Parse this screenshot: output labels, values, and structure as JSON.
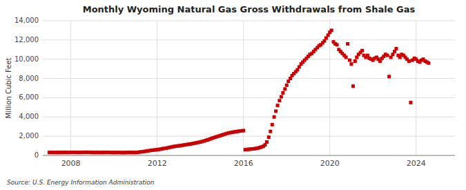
{
  "chart_data": {
    "type": "scatter",
    "title": "Monthly Wyoming Natural Gas Gross Withdrawals from Shale Gas",
    "ylabel": "Million Cubic Feet",
    "annotations": [
      "Source: U.S. Energy Information Administration"
    ],
    "color": "#CC0000",
    "marker": "square",
    "grid": true,
    "xlim": [
      2006.7,
      2025.8
    ],
    "xticks": [
      2008,
      2012,
      2016,
      2020,
      2024
    ],
    "ylim": [
      0,
      14000
    ],
    "yticks": [
      0,
      {
        "value": 2000,
        "label": "2,000"
      },
      {
        "value": 4000,
        "label": "4,000"
      },
      {
        "value": 6000,
        "label": "6,000"
      },
      {
        "value": 8000,
        "label": "8,000"
      },
      {
        "value": 10000,
        "label": "10,000"
      },
      {
        "value": 12000,
        "label": "12,000"
      },
      {
        "value": 14000,
        "label": "14,000"
      }
    ],
    "x": [
      2007.0,
      2007.08,
      2007.17,
      2007.25,
      2007.33,
      2007.42,
      2007.5,
      2007.58,
      2007.67,
      2007.75,
      2007.83,
      2007.92,
      2008.0,
      2008.08,
      2008.17,
      2008.25,
      2008.33,
      2008.42,
      2008.5,
      2008.58,
      2008.67,
      2008.75,
      2008.83,
      2008.92,
      2009.0,
      2009.08,
      2009.17,
      2009.25,
      2009.33,
      2009.42,
      2009.5,
      2009.58,
      2009.67,
      2009.75,
      2009.83,
      2009.92,
      2010.0,
      2010.08,
      2010.17,
      2010.25,
      2010.33,
      2010.42,
      2010.5,
      2010.58,
      2010.67,
      2010.75,
      2010.83,
      2010.92,
      2011.0,
      2011.08,
      2011.17,
      2011.25,
      2011.33,
      2011.42,
      2011.5,
      2011.58,
      2011.67,
      2011.75,
      2011.83,
      2011.92,
      2012.0,
      2012.08,
      2012.17,
      2012.25,
      2012.33,
      2012.42,
      2012.5,
      2012.58,
      2012.67,
      2012.75,
      2012.83,
      2012.92,
      2013.0,
      2013.08,
      2013.17,
      2013.25,
      2013.33,
      2013.42,
      2013.5,
      2013.58,
      2013.67,
      2013.75,
      2013.83,
      2013.92,
      2014.0,
      2014.08,
      2014.17,
      2014.25,
      2014.33,
      2014.42,
      2014.5,
      2014.58,
      2014.67,
      2014.75,
      2014.83,
      2014.92,
      2015.0,
      2015.08,
      2015.17,
      2015.25,
      2015.33,
      2015.42,
      2015.5,
      2015.58,
      2015.67,
      2015.75,
      2015.83,
      2015.92,
      2016.0,
      2016.08,
      2016.17,
      2016.25,
      2016.33,
      2016.42,
      2016.5,
      2016.58,
      2016.67,
      2016.75,
      2016.83,
      2016.92,
      2017.0,
      2017.08,
      2017.17,
      2017.25,
      2017.33,
      2017.42,
      2017.5,
      2017.58,
      2017.67,
      2017.75,
      2017.83,
      2017.92,
      2018.0,
      2018.08,
      2018.17,
      2018.25,
      2018.33,
      2018.42,
      2018.5,
      2018.58,
      2018.67,
      2018.75,
      2018.83,
      2018.92,
      2019.0,
      2019.08,
      2019.17,
      2019.25,
      2019.33,
      2019.42,
      2019.5,
      2019.58,
      2019.67,
      2019.75,
      2019.83,
      2019.92,
      2020.0,
      2020.08,
      2020.17,
      2020.25,
      2020.33,
      2020.42,
      2020.5,
      2020.58,
      2020.67,
      2020.75,
      2020.83,
      2020.92,
      2021.0,
      2021.08,
      2021.17,
      2021.25,
      2021.33,
      2021.42,
      2021.5,
      2021.58,
      2021.67,
      2021.75,
      2021.83,
      2021.92,
      2022.0,
      2022.08,
      2022.17,
      2022.25,
      2022.33,
      2022.42,
      2022.5,
      2022.58,
      2022.67,
      2022.75,
      2022.83,
      2022.92,
      2023.0,
      2023.08,
      2023.17,
      2023.25,
      2023.33,
      2023.42,
      2023.5,
      2023.58,
      2023.67,
      2023.75,
      2023.83,
      2023.92,
      2024.0,
      2024.08,
      2024.17,
      2024.25,
      2024.33,
      2024.42,
      2024.5,
      2024.58
    ],
    "values": [
      310,
      320,
      315,
      310,
      305,
      310,
      315,
      310,
      320,
      315,
      310,
      315,
      320,
      330,
      325,
      320,
      315,
      310,
      320,
      325,
      330,
      335,
      330,
      325,
      310,
      305,
      310,
      315,
      310,
      305,
      310,
      315,
      320,
      315,
      310,
      305,
      300,
      305,
      310,
      305,
      300,
      295,
      300,
      305,
      310,
      315,
      310,
      305,
      310,
      320,
      350,
      370,
      390,
      420,
      450,
      480,
      510,
      540,
      560,
      580,
      600,
      630,
      660,
      700,
      730,
      760,
      800,
      840,
      880,
      920,
      950,
      980,
      1000,
      1030,
      1060,
      1090,
      1120,
      1150,
      1180,
      1210,
      1250,
      1280,
      1320,
      1360,
      1400,
      1450,
      1500,
      1560,
      1620,
      1680,
      1750,
      1820,
      1880,
      1940,
      2000,
      2060,
      2120,
      2180,
      2240,
      2300,
      2350,
      2380,
      2420,
      2450,
      2480,
      2510,
      2540,
      2560,
      2580,
      600,
      620,
      640,
      660,
      680,
      700,
      730,
      770,
      820,
      880,
      960,
      1100,
      1400,
      1900,
      2500,
      3200,
      4000,
      4600,
      5200,
      5700,
      6100,
      6500,
      6900,
      7300,
      7700,
      8000,
      8300,
      8500,
      8700,
      8900,
      9200,
      9500,
      9700,
      9900,
      10100,
      10300,
      10500,
      10600,
      10800,
      11000,
      11200,
      11400,
      11500,
      11700,
      11900,
      12200,
      12500,
      12800,
      13000,
      11800,
      11600,
      11500,
      11000,
      10800,
      10600,
      10400,
      10200,
      11600,
      9900,
      9500,
      7200,
      9800,
      10200,
      10500,
      10700,
      10900,
      10400,
      10200,
      10400,
      10100,
      10000,
      9900,
      10100,
      10200,
      10000,
      9800,
      10100,
      10300,
      10500,
      10400,
      8200,
      10200,
      10500,
      10800,
      11100,
      10400,
      10200,
      10500,
      10400,
      10200,
      10000,
      9800,
      5500,
      9900,
      10100,
      10000,
      9800,
      9700,
      9900,
      10000,
      9800,
      9700,
      9600
    ]
  }
}
